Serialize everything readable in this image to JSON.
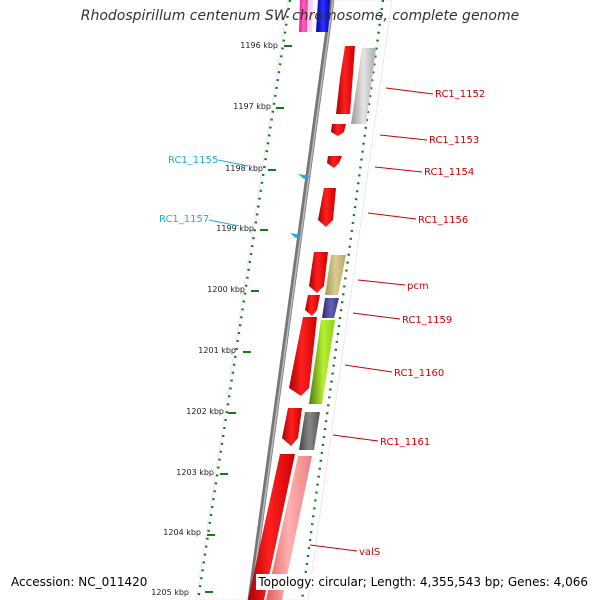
{
  "title": "Rhodospirillum centenum SW chromosome, complete genome",
  "accession_text": "Accession: NC_011420",
  "topology_text": "Topology: circular; Length: 4,355,543 bp; Genes: 4,066",
  "colors": {
    "backbone": "#777777",
    "tick": "#1a7a1a",
    "forward_label": "#cc0000",
    "reverse_label": "#22aadd"
  },
  "ticks": [
    {
      "label": "1196 kbp"
    },
    {
      "label": "1197 kbp"
    },
    {
      "label": "1198 kbp"
    },
    {
      "label": "1199 kbp"
    },
    {
      "label": "1200 kbp"
    },
    {
      "label": "1201 kbp"
    },
    {
      "label": "1202 kbp"
    },
    {
      "label": "1203 kbp"
    },
    {
      "label": "1204 kbp"
    },
    {
      "label": "1205 kbp"
    }
  ],
  "gene_labels": [
    {
      "name": "RC1_1152",
      "color": "#cc0000"
    },
    {
      "name": "RC1_1153",
      "color": "#cc0000"
    },
    {
      "name": "RC1_1154",
      "color": "#cc0000"
    },
    {
      "name": "RC1_1156",
      "color": "#cc0000"
    },
    {
      "name": "pcm",
      "color": "#cc0000"
    },
    {
      "name": "RC1_1159",
      "color": "#cc0000"
    },
    {
      "name": "RC1_1160",
      "color": "#cc0000"
    },
    {
      "name": "RC1_1161",
      "color": "#cc0000"
    },
    {
      "name": "valS",
      "color": "#cc0000"
    },
    {
      "name": "RC1_1155",
      "color": "#22aadd"
    },
    {
      "name": "RC1_1157",
      "color": "#22aadd"
    }
  ]
}
